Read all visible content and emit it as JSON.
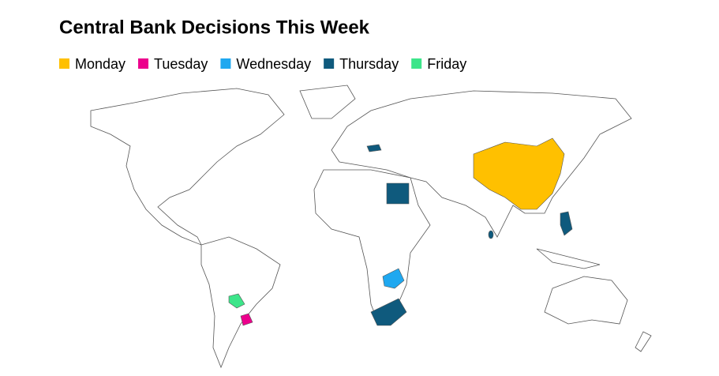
{
  "title": "Central Bank Decisions This Week",
  "legend": [
    {
      "name": "Monday",
      "color": "#ffc000"
    },
    {
      "name": "Tuesday",
      "color": "#ec008c"
    },
    {
      "name": "Wednesday",
      "color": "#1fa8f0"
    },
    {
      "name": "Thursday",
      "color": "#0f5a7d"
    },
    {
      "name": "Friday",
      "color": "#3de58a"
    }
  ]
}
